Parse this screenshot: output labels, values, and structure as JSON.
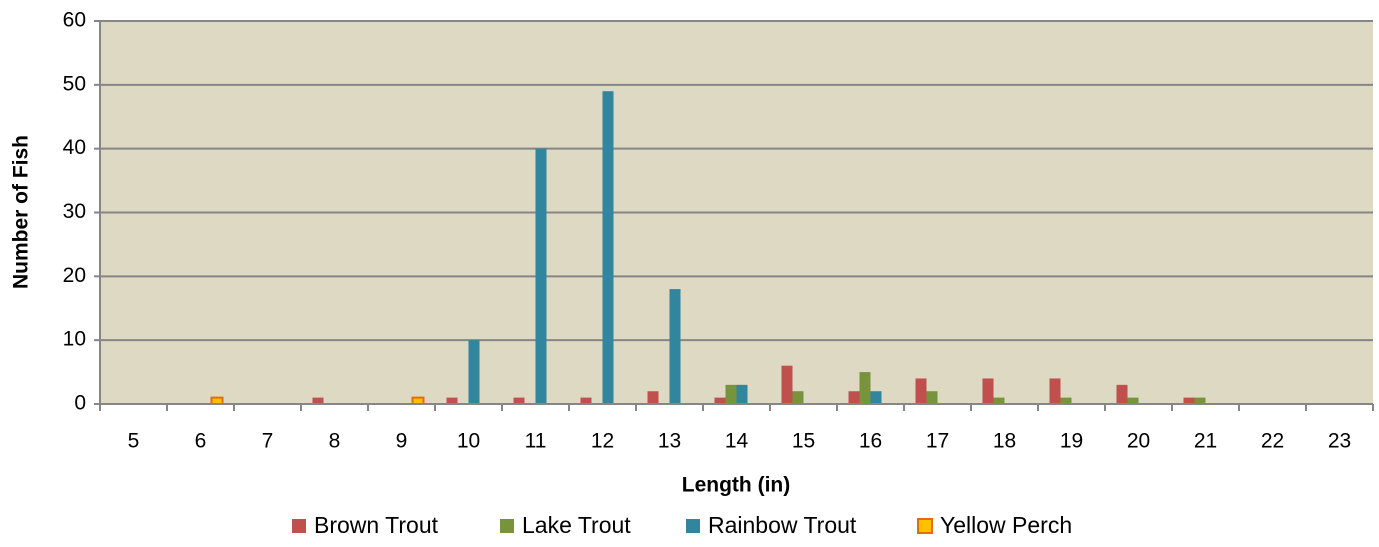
{
  "chart_data": {
    "type": "bar",
    "x_label": "Length (in)",
    "y_label": "Number of Fish",
    "categories": [
      "5",
      "6",
      "7",
      "8",
      "9",
      "10",
      "11",
      "12",
      "13",
      "14",
      "15",
      "16",
      "17",
      "18",
      "19",
      "20",
      "21",
      "22",
      "23"
    ],
    "series": [
      {
        "name": "Brown Trout",
        "color": "#c0504d",
        "values": [
          0,
          0,
          0,
          1,
          0,
          1,
          1,
          1,
          2,
          1,
          6,
          2,
          4,
          4,
          4,
          3,
          1,
          0,
          0
        ]
      },
      {
        "name": "Lake Trout",
        "color": "#77933c",
        "values": [
          0,
          0,
          0,
          0,
          0,
          0,
          0,
          0,
          0,
          3,
          2,
          5,
          2,
          1,
          1,
          1,
          1,
          0,
          0
        ]
      },
      {
        "name": "Rainbow Trout",
        "color": "#31859c",
        "values": [
          0,
          0,
          0,
          0,
          0,
          10,
          40,
          49,
          18,
          3,
          0,
          2,
          0,
          0,
          0,
          0,
          0,
          0,
          0
        ]
      },
      {
        "name": "Yellow Perch",
        "color": "#ffc000",
        "edgecolor": "#e46c0a",
        "values": [
          0,
          1,
          0,
          0,
          1,
          0,
          0,
          0,
          0,
          0,
          0,
          0,
          0,
          0,
          0,
          0,
          0,
          0,
          0
        ]
      }
    ],
    "ylim": [
      0,
      60
    ],
    "yticks": [
      0,
      10,
      20,
      30,
      40,
      50,
      60
    ],
    "grid": true,
    "legend": "bottom"
  }
}
